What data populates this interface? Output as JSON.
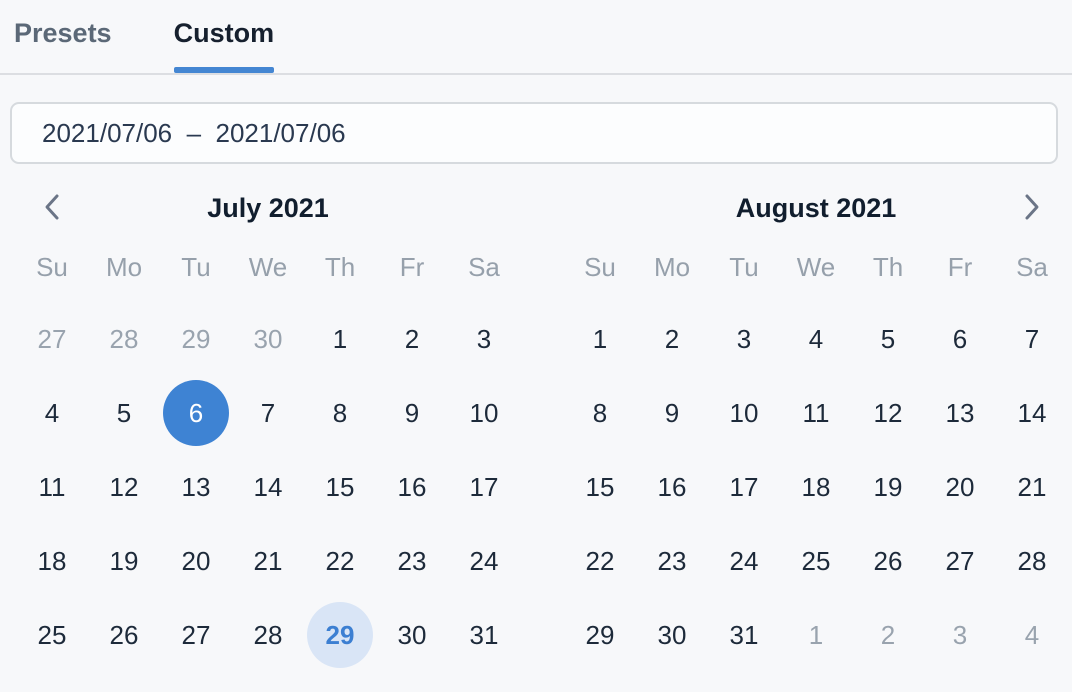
{
  "tabs": {
    "presets": "Presets",
    "custom": "Custom"
  },
  "date_input": {
    "value": "2021/07/06  –  2021/07/06"
  },
  "weekday_headers": [
    "Su",
    "Mo",
    "Tu",
    "We",
    "Th",
    "Fr",
    "Sa"
  ],
  "calendars": [
    {
      "title": "July 2021",
      "weeks": [
        [
          {
            "d": "27",
            "state": "muted"
          },
          {
            "d": "28",
            "state": "muted"
          },
          {
            "d": "29",
            "state": "muted"
          },
          {
            "d": "30",
            "state": "muted"
          },
          {
            "d": "1"
          },
          {
            "d": "2"
          },
          {
            "d": "3"
          }
        ],
        [
          {
            "d": "4"
          },
          {
            "d": "5"
          },
          {
            "d": "6",
            "state": "selected"
          },
          {
            "d": "7"
          },
          {
            "d": "8"
          },
          {
            "d": "9"
          },
          {
            "d": "10"
          }
        ],
        [
          {
            "d": "11"
          },
          {
            "d": "12"
          },
          {
            "d": "13"
          },
          {
            "d": "14"
          },
          {
            "d": "15"
          },
          {
            "d": "16"
          },
          {
            "d": "17"
          }
        ],
        [
          {
            "d": "18"
          },
          {
            "d": "19"
          },
          {
            "d": "20"
          },
          {
            "d": "21"
          },
          {
            "d": "22"
          },
          {
            "d": "23"
          },
          {
            "d": "24"
          }
        ],
        [
          {
            "d": "25"
          },
          {
            "d": "26"
          },
          {
            "d": "27"
          },
          {
            "d": "28"
          },
          {
            "d": "29",
            "state": "today"
          },
          {
            "d": "30"
          },
          {
            "d": "31"
          }
        ]
      ]
    },
    {
      "title": "August 2021",
      "weeks": [
        [
          {
            "d": "1"
          },
          {
            "d": "2"
          },
          {
            "d": "3"
          },
          {
            "d": "4"
          },
          {
            "d": "5"
          },
          {
            "d": "6"
          },
          {
            "d": "7"
          }
        ],
        [
          {
            "d": "8"
          },
          {
            "d": "9"
          },
          {
            "d": "10"
          },
          {
            "d": "11"
          },
          {
            "d": "12"
          },
          {
            "d": "13"
          },
          {
            "d": "14"
          }
        ],
        [
          {
            "d": "15"
          },
          {
            "d": "16"
          },
          {
            "d": "17"
          },
          {
            "d": "18"
          },
          {
            "d": "19"
          },
          {
            "d": "20"
          },
          {
            "d": "21"
          }
        ],
        [
          {
            "d": "22"
          },
          {
            "d": "23"
          },
          {
            "d": "24"
          },
          {
            "d": "25"
          },
          {
            "d": "26"
          },
          {
            "d": "27"
          },
          {
            "d": "28"
          }
        ],
        [
          {
            "d": "29"
          },
          {
            "d": "30"
          },
          {
            "d": "31"
          },
          {
            "d": "1",
            "state": "muted"
          },
          {
            "d": "2",
            "state": "muted"
          },
          {
            "d": "3",
            "state": "muted"
          },
          {
            "d": "4",
            "state": "muted"
          }
        ]
      ]
    }
  ],
  "icons": {
    "prev": "chevron-left",
    "next": "chevron-right"
  },
  "colors": {
    "accent_underline": "#4486d2",
    "selected_day_bg": "#3e83d3",
    "selected_day_text": "#ffffff",
    "today_bg": "#d9e5f6",
    "today_text": "#3c7fd2",
    "muted_text": "#99a3ae",
    "page_bg": "#f7f8fa"
  }
}
